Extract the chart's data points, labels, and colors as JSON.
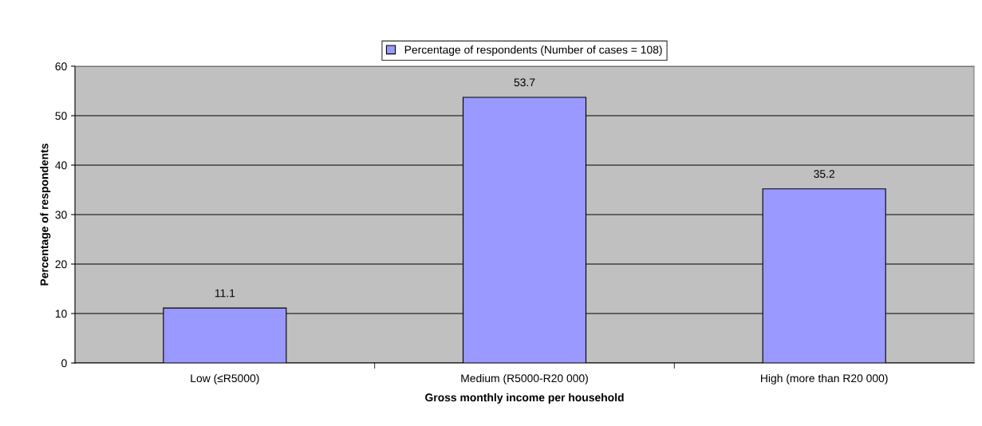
{
  "chart_data": {
    "type": "bar",
    "xlabel": "Gross monthly income per household",
    "ylabel": "Percentage of respondents",
    "categories": [
      "Low (≤R5000)",
      "Medium (R5000-R20 000)",
      "High (more than R20 000)"
    ],
    "series": [
      {
        "name": "Percentage of respondents (Number of cases = 108)",
        "color": "#9999ff",
        "values": [
          11.1,
          53.7,
          35.2
        ]
      }
    ],
    "data_labels": true,
    "ylim": [
      0,
      60
    ],
    "yticks": [
      0,
      10,
      20,
      30,
      40,
      50,
      60
    ],
    "grid": "y",
    "legend": "top"
  }
}
